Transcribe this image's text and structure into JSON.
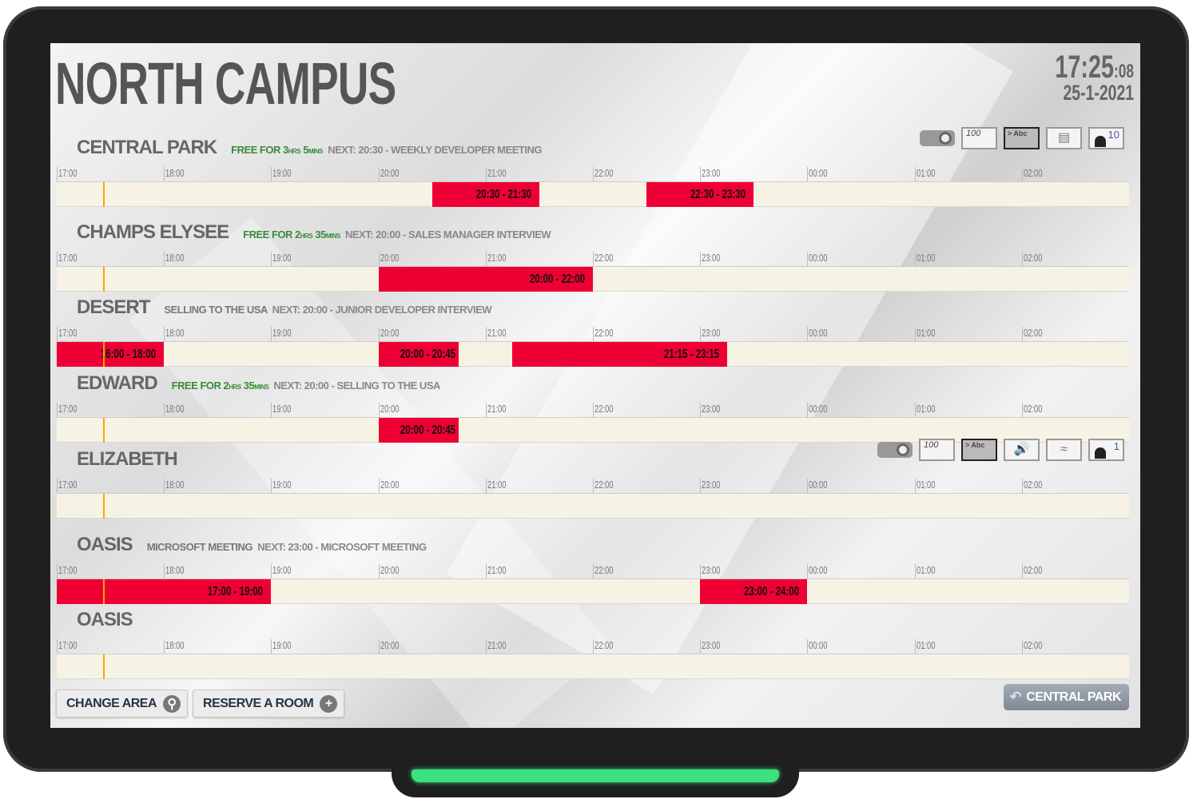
{
  "header": {
    "title": "NORTH CAMPUS",
    "time_hm": "17:25",
    "time_s": ":08",
    "date": "25-1-2021"
  },
  "timeline": {
    "start_hour": 17,
    "hours": [
      "17:00",
      "18:00",
      "19:00",
      "20:00",
      "21:00",
      "22:00",
      "23:00",
      "00:00",
      "01:00",
      "02:00"
    ],
    "now": "17:25"
  },
  "colors": {
    "booked": "#ee0034",
    "free_bar": "#f7f3e4",
    "now_marker": "#f3a800",
    "free_text": "#3a8b3a"
  },
  "rooms": [
    {
      "name": "CENTRAL PARK",
      "status": {
        "type": "free",
        "prefix": "FREE FOR ",
        "h": "3",
        "hu": "HRS",
        "m": "5",
        "mu": "MINS"
      },
      "next": "NEXT: 20:30 - WEEKLY DEVELOPER MEETING",
      "bookings": [
        {
          "start": "20:30",
          "end": "21:30",
          "label": "20:30 - 21:30"
        },
        {
          "start": "22:30",
          "end": "23:30",
          "label": "22:30 - 23:30"
        }
      ],
      "amenities": [
        {
          "icon": "projector-icon"
        },
        {
          "icon": "whiteboard-icon",
          "text": "100"
        },
        {
          "icon": "display-icon",
          "text": "> Abc"
        },
        {
          "icon": "video-camera-icon"
        },
        {
          "icon": "capacity-icon",
          "text": "10"
        }
      ]
    },
    {
      "name": "CHAMPS ELYSEE",
      "status": {
        "type": "free",
        "prefix": "FREE FOR ",
        "h": "2",
        "hu": "HRS",
        "m": "35",
        "mu": "MINS"
      },
      "next": "NEXT: 20:00 - SALES MANAGER INTERVIEW",
      "bookings": [
        {
          "start": "20:00",
          "end": "22:00",
          "label": "20:00 - 22:00"
        }
      ]
    },
    {
      "name": "DESERT",
      "status": {
        "type": "busy",
        "text": "SELLING TO THE USA"
      },
      "next": "NEXT: 20:00 - JUNIOR DEVELOPER INTERVIEW",
      "bookings": [
        {
          "start": "17:00",
          "end": "18:00",
          "label": "16:00 - 18:00"
        },
        {
          "start": "20:00",
          "end": "20:45",
          "label": "20:00 - 20:45"
        },
        {
          "start": "21:15",
          "end": "23:15",
          "label": "21:15 - 23:15"
        }
      ]
    },
    {
      "name": "EDWARD",
      "status": {
        "type": "free",
        "prefix": "FREE FOR ",
        "h": "2",
        "hu": "HRS",
        "m": "35",
        "mu": "MINS"
      },
      "next": "NEXT: 20:00 - SELLING TO THE USA",
      "bookings": [
        {
          "start": "20:00",
          "end": "20:45",
          "label": "20:00 - 20:45"
        }
      ]
    },
    {
      "name": "ELIZABETH",
      "status": null,
      "next": "",
      "bookings": [],
      "amenities": [
        {
          "icon": "projector-icon"
        },
        {
          "icon": "whiteboard-icon",
          "text": "100"
        },
        {
          "icon": "display-icon",
          "text": "> Abc"
        },
        {
          "icon": "speaker-icon"
        },
        {
          "icon": "wifi-icon"
        },
        {
          "icon": "capacity-icon",
          "text": "1"
        }
      ]
    },
    {
      "name": "OASIS",
      "status": {
        "type": "busy",
        "text": "MICROSOFT MEETING"
      },
      "next": "NEXT: 23:00 - MICROSOFT MEETING",
      "bookings": [
        {
          "start": "17:00",
          "end": "19:00",
          "label": "17:00 - 19:00"
        },
        {
          "start": "23:00",
          "end": "24:00",
          "label": "23:00 - 24:00"
        }
      ]
    },
    {
      "name": "OASIS",
      "status": null,
      "next": "",
      "bookings": []
    }
  ],
  "footer": {
    "change_area": "CHANGE AREA",
    "reserve_room": "RESERVE A ROOM",
    "back_label": "CENTRAL PARK"
  }
}
